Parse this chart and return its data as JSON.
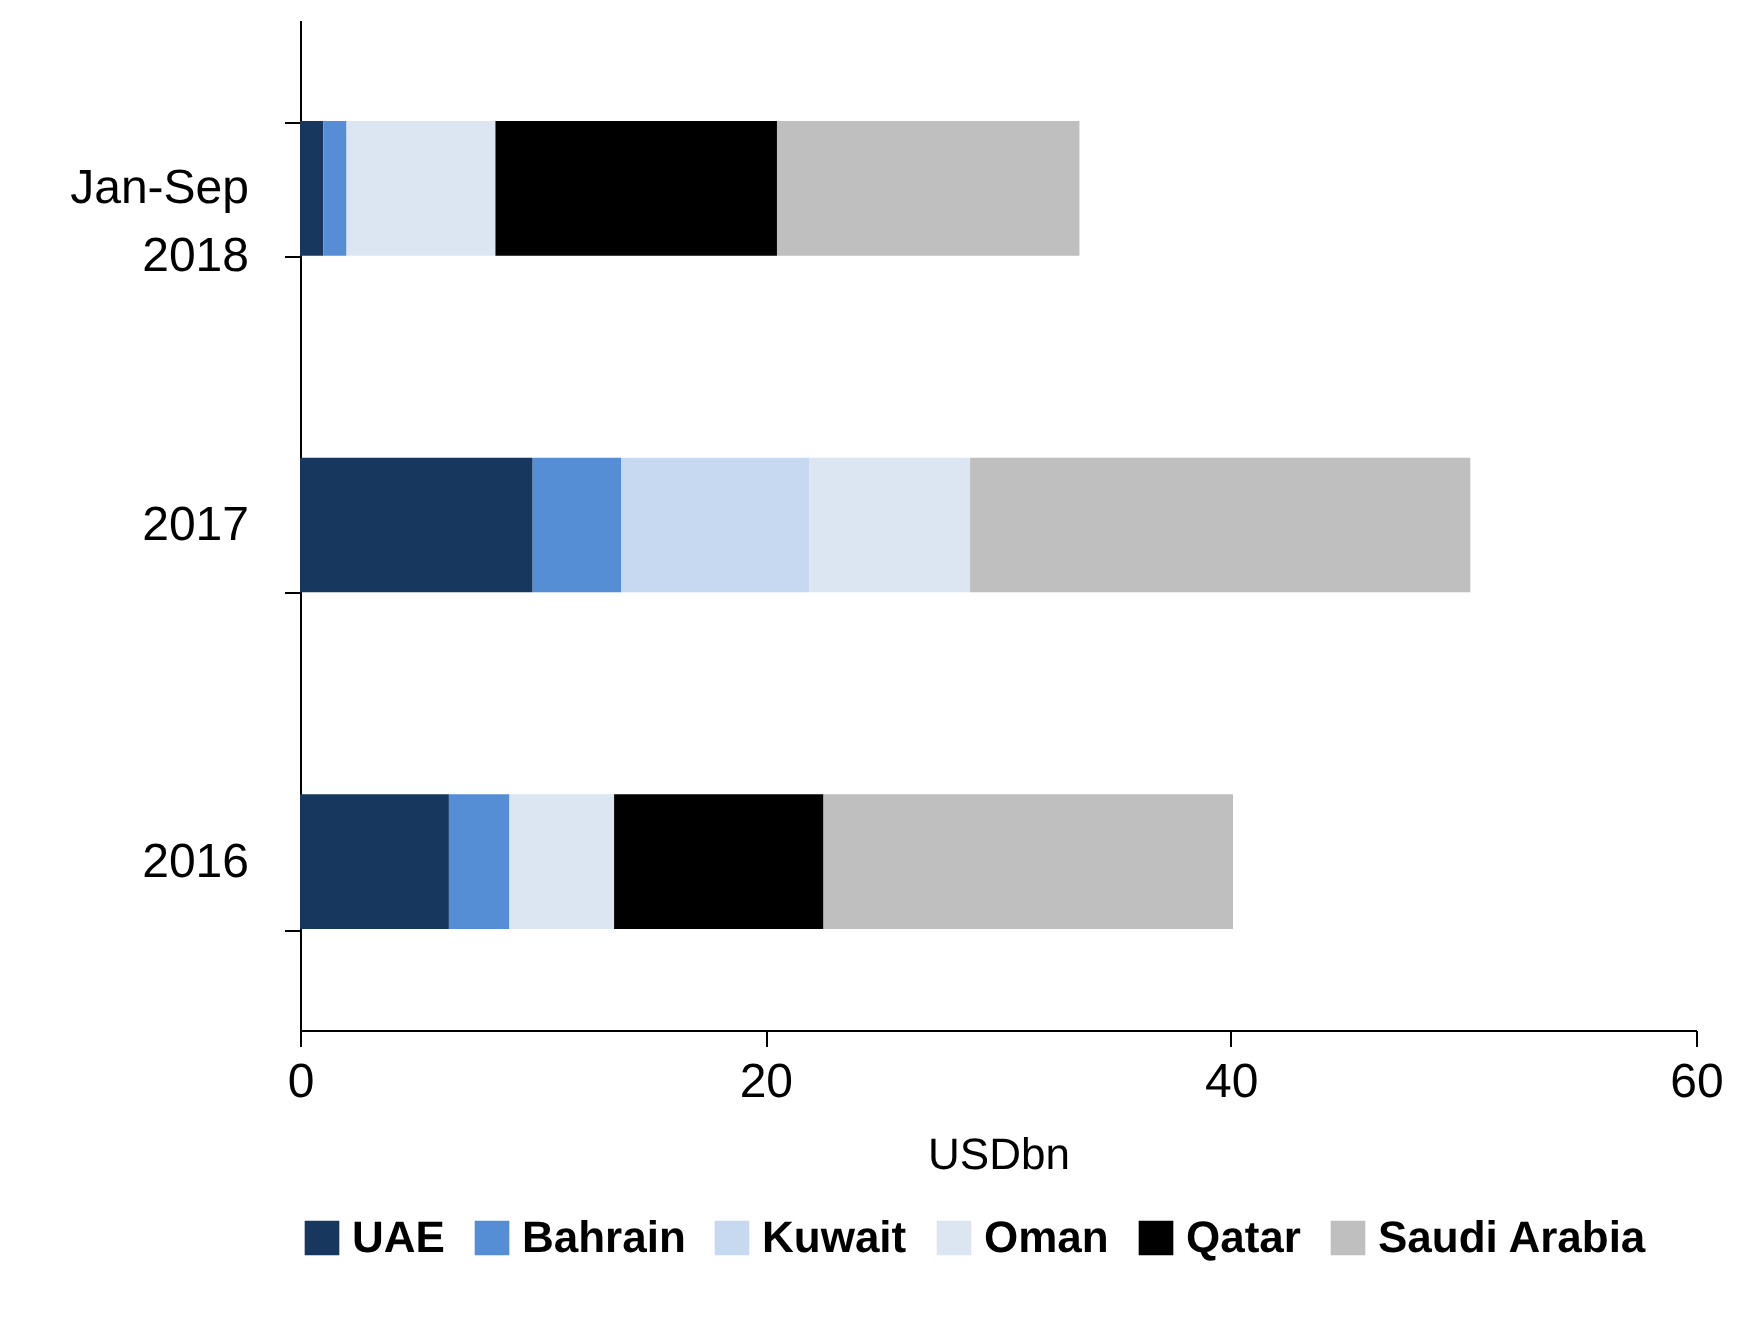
{
  "chart_data": {
    "type": "bar",
    "orientation": "horizontal",
    "stacked": true,
    "xlabel": "USDbn",
    "categories": [
      "Jan-Sep 2018",
      "2017",
      "2016"
    ],
    "series": [
      {
        "name": "UAE",
        "color": "#17375e",
        "values": [
          1.0,
          10.0,
          6.4
        ]
      },
      {
        "name": "Bahrain",
        "color": "#558ed5",
        "values": [
          1.0,
          3.8,
          2.6
        ]
      },
      {
        "name": "Kuwait",
        "color": "#c6d9f1",
        "values": [
          0,
          8.1,
          0
        ]
      },
      {
        "name": "Oman",
        "color": "#dce6f2",
        "values": [
          6.4,
          6.9,
          4.5
        ]
      },
      {
        "name": "Qatar",
        "color": "#000000",
        "values": [
          12.1,
          0,
          9.0
        ]
      },
      {
        "name": "Saudi Arabia",
        "color": "#bfbfbf",
        "values": [
          13.0,
          21.5,
          17.6
        ]
      }
    ],
    "xlim": [
      0,
      60
    ],
    "xticks": [
      0,
      20,
      40,
      60
    ],
    "grid": false,
    "legend": "bottom"
  }
}
